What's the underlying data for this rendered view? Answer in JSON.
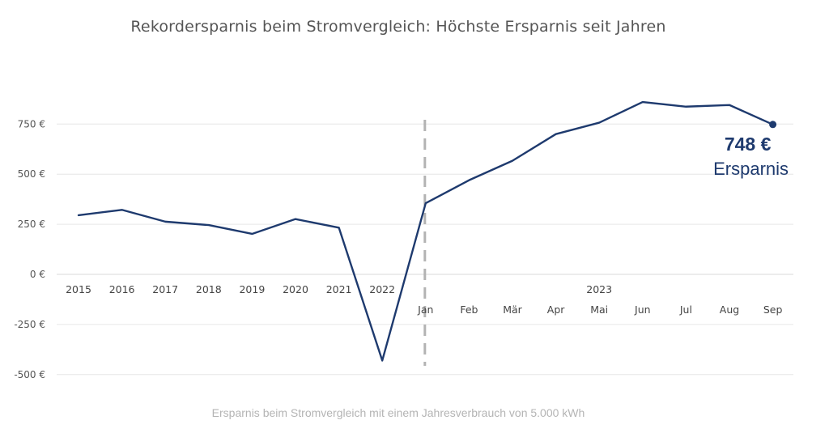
{
  "chart_data": {
    "type": "line",
    "title": "Rekordersparnis beim Stromvergleich: Höchste Ersparnis seit Jahren",
    "caption": "Ersparnis beim Stromvergleich mit einem Jahresverbrauch von 5.000 kWh",
    "xlabel": "",
    "ylabel": "",
    "ylim": [
      -500,
      900
    ],
    "yticks": [
      750,
      500,
      250,
      0,
      -250,
      -500
    ],
    "ytick_labels": [
      "750 €",
      "500 €",
      "250 €",
      "0 €",
      "-250 €",
      "-500 €"
    ],
    "grid": true,
    "line_color": "#1e3a6e",
    "categories": [
      "2015",
      "2016",
      "2017",
      "2018",
      "2019",
      "2020",
      "2021",
      "2022",
      "Jan",
      "Feb",
      "Mär",
      "Apr",
      "Mai",
      "Jun",
      "Jul",
      "Aug",
      "Sep"
    ],
    "group_label": "2023",
    "divider_after": "2022",
    "series": [
      {
        "name": "Ersparnis",
        "values": [
          295,
          322,
          263,
          246,
          202,
          276,
          233,
          -430,
          355,
          470,
          567,
          700,
          757,
          860,
          837,
          845,
          748
        ]
      }
    ],
    "annotation": {
      "value_text": "748 €",
      "label_text": "Ersparnis",
      "point": "Sep"
    }
  }
}
